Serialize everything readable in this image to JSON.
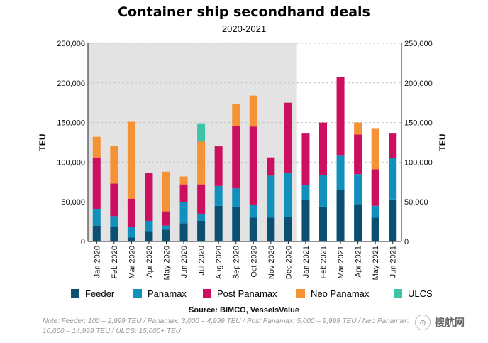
{
  "chart_data": {
    "type": "bar",
    "stacked": true,
    "title": "Container ship secondhand deals",
    "subtitle": "2020-2021",
    "ylabel": "TEU",
    "ylabel_right": "TEU",
    "xlabel": "",
    "ylim": [
      0,
      250000
    ],
    "yticks": [
      0,
      50000,
      100000,
      150000,
      200000,
      250000
    ],
    "ytick_labels": [
      "0",
      "50,000",
      "100,000",
      "150,000",
      "200,000",
      "250,000"
    ],
    "grid": true,
    "shaded_period": [
      "Jan 2020",
      "Dec 2020"
    ],
    "categories": [
      "Jan 2020",
      "Feb 2020",
      "Mar 2020",
      "Apr 2020",
      "May 2020",
      "Jun 2020",
      "Jul 2020",
      "Aug 2020",
      "Sep 2020",
      "Oct 2020",
      "Nov 2020",
      "Dec 2020",
      "Jan 2021",
      "Feb 2021",
      "Mar 2021",
      "Apr 2021",
      "May 2021",
      "Jun 2021"
    ],
    "series": [
      {
        "name": "Feeder",
        "color": "#0b4f72",
        "values": [
          20000,
          18000,
          5000,
          13000,
          15000,
          23000,
          26000,
          45000,
          43000,
          30000,
          30000,
          31000,
          52000,
          44000,
          65000,
          47000,
          30000,
          53000
        ]
      },
      {
        "name": "Panamax",
        "color": "#1290bd",
        "values": [
          21000,
          14000,
          13000,
          13000,
          5000,
          27000,
          9000,
          25000,
          24000,
          16000,
          53000,
          55000,
          19000,
          40000,
          44000,
          38000,
          15000,
          52000
        ]
      },
      {
        "name": "Post Panamax",
        "color": "#cc0f5e",
        "values": [
          65000,
          41000,
          36000,
          60000,
          18000,
          22000,
          37000,
          50000,
          79000,
          99000,
          23000,
          89000,
          66000,
          66000,
          98000,
          50000,
          46000,
          32000
        ]
      },
      {
        "name": "Neo Panamax",
        "color": "#f59237",
        "values": [
          26000,
          48000,
          97000,
          0,
          50000,
          10000,
          54000,
          0,
          27000,
          39000,
          0,
          0,
          0,
          0,
          0,
          15000,
          52000,
          0
        ]
      },
      {
        "name": "ULCS",
        "color": "#3dc4a8",
        "values": [
          0,
          0,
          0,
          0,
          0,
          0,
          23000,
          0,
          0,
          0,
          0,
          0,
          0,
          0,
          0,
          0,
          0,
          0
        ]
      }
    ],
    "legend_position": "bottom"
  },
  "source": "Source: BIMCO, VesselsValue",
  "note": "Note: Feeder: 100 – 2,999 TEU / Panamax: 3,000 – 4,999 TEU / Post Panamax: 5,000 – 9,999 TEU / Neo Panamax: 10,000 – 14,999 TEU / ULCS: 15,000+ TEU",
  "watermark": {
    "text": "搜航网",
    "logo_text": "⊙"
  },
  "colors": {
    "shade": "#e3e3e3",
    "grid": "#c4c4c4"
  }
}
